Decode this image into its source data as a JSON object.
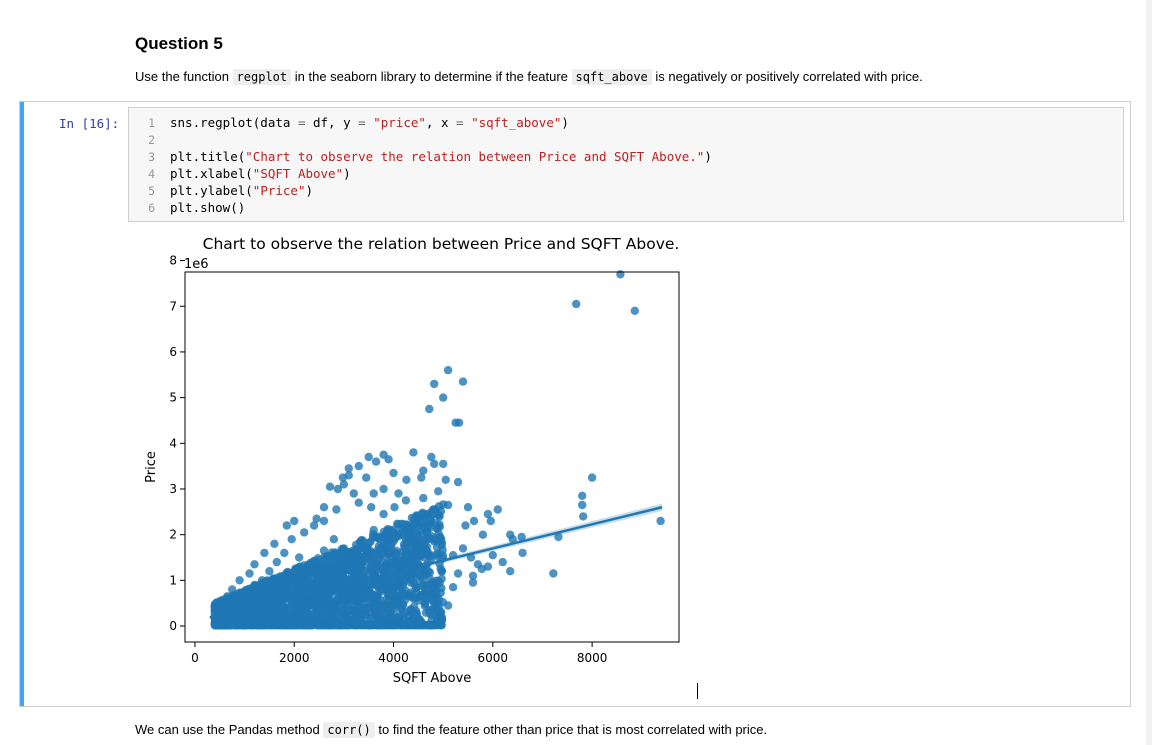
{
  "markdown": {
    "title": "Question 5",
    "para1": {
      "t1": "Use the function ",
      "c1": "regplot",
      "t2": " in the seaborn library to determine if the feature ",
      "c2": "sqft_above",
      "t3": " is negatively or positively correlated with price."
    },
    "para2": {
      "t1": "We can use the Pandas method ",
      "c1": "corr()",
      "t2": " to find the feature other than price that is most correlated with price."
    }
  },
  "cell": {
    "prompt": "In [16]:",
    "lines": [
      {
        "n": "1",
        "parts": [
          "sns.regplot(data ",
          "=",
          " df, y ",
          "=",
          " ",
          "\"price\"",
          ", x ",
          "=",
          " ",
          "\"sqft_above\"",
          ")"
        ]
      },
      {
        "n": "2",
        "parts": []
      },
      {
        "n": "3",
        "parts": [
          "plt.title(",
          "\"Chart to observe the relation between Price and SQFT Above.\"",
          ")"
        ]
      },
      {
        "n": "4",
        "parts": [
          "plt.xlabel(",
          "\"SQFT Above\"",
          ")"
        ]
      },
      {
        "n": "5",
        "parts": [
          "plt.ylabel(",
          "\"Price\"",
          ")"
        ]
      },
      {
        "n": "6",
        "parts": [
          "plt.show()"
        ]
      }
    ]
  },
  "chart_data": {
    "type": "scatter",
    "title": "Chart to observe the relation between Price and SQFT Above.",
    "xlabel": "SQFT Above",
    "ylabel": "Price",
    "y_offset_label": "1e6",
    "xlim": [
      -200,
      9750
    ],
    "ylim": [
      -0.35,
      7.75
    ],
    "xticks": [
      0,
      2000,
      4000,
      6000,
      8000
    ],
    "yticks": [
      0,
      1,
      2,
      3,
      4,
      5,
      6,
      7,
      8
    ],
    "grid": false,
    "color": "#1f77b4",
    "regression_line": {
      "x": [
        300,
        9410
      ],
      "y": [
        0.19,
        2.6
      ]
    },
    "points": [
      [
        4820,
        5.3
      ],
      [
        5100,
        5.6
      ],
      [
        5000,
        5.0
      ],
      [
        5400,
        5.35
      ],
      [
        4720,
        4.75
      ],
      [
        5250,
        4.45
      ],
      [
        5320,
        4.45
      ],
      [
        4400,
        3.8
      ],
      [
        4760,
        3.7
      ],
      [
        4820,
        3.55
      ],
      [
        5000,
        3.55
      ],
      [
        4560,
        3.25
      ],
      [
        5050,
        3.2
      ],
      [
        5500,
        2.6
      ],
      [
        5620,
        2.3
      ],
      [
        5900,
        2.45
      ],
      [
        5960,
        2.3
      ],
      [
        6100,
        2.55
      ],
      [
        6350,
        2.0
      ],
      [
        6400,
        1.9
      ],
      [
        6580,
        1.95
      ],
      [
        6600,
        1.6
      ],
      [
        7320,
        1.95
      ],
      [
        7220,
        1.15
      ],
      [
        8000,
        3.25
      ],
      [
        7800,
        2.85
      ],
      [
        7800,
        2.65
      ],
      [
        7820,
        2.4
      ],
      [
        7680,
        7.05
      ],
      [
        8570,
        7.7
      ],
      [
        8860,
        6.9
      ],
      [
        9380,
        2.3
      ],
      [
        5700,
        1.35
      ],
      [
        5780,
        1.25
      ],
      [
        5560,
        1.5
      ],
      [
        5400,
        1.7
      ],
      [
        5200,
        1.55
      ],
      [
        3500,
        3.7
      ],
      [
        3300,
        3.5
      ],
      [
        3100,
        3.45
      ],
      [
        2980,
        3.25
      ],
      [
        2720,
        3.05
      ],
      [
        2880,
        3.0
      ],
      [
        3000,
        3.1
      ],
      [
        3800,
        3.75
      ],
      [
        3900,
        3.65
      ],
      [
        4000,
        3.35
      ],
      [
        4260,
        3.2
      ],
      [
        4100,
        2.9
      ],
      [
        4600,
        3.4
      ],
      [
        3650,
        3.6
      ],
      [
        3450,
        3.25
      ],
      [
        3600,
        2.9
      ],
      [
        4020,
        2.6
      ],
      [
        4250,
        2.75
      ],
      [
        4480,
        2.3
      ],
      [
        4560,
        2.0
      ],
      [
        4300,
        2.05
      ],
      [
        3800,
        2.45
      ],
      [
        3550,
        2.6
      ],
      [
        3200,
        2.9
      ],
      [
        2850,
        2.55
      ],
      [
        2600,
        2.3
      ],
      [
        2400,
        2.2
      ],
      [
        2200,
        2.05
      ],
      [
        1950,
        1.9
      ],
      [
        1800,
        1.6
      ],
      [
        1650,
        1.4
      ],
      [
        1500,
        1.2
      ],
      [
        1350,
        1.0
      ],
      [
        1200,
        0.9
      ],
      [
        1000,
        0.75
      ],
      [
        900,
        0.55
      ],
      [
        800,
        0.45
      ],
      [
        700,
        0.3
      ],
      [
        600,
        0.2
      ],
      [
        520,
        0.12
      ],
      [
        2100,
        1.5
      ],
      [
        2300,
        1.2
      ],
      [
        2500,
        0.95
      ],
      [
        2700,
        0.8
      ],
      [
        3000,
        0.7
      ],
      [
        3300,
        0.6
      ],
      [
        3600,
        0.55
      ],
      [
        4000,
        0.5
      ],
      [
        4400,
        0.6
      ],
      [
        4800,
        0.75
      ],
      [
        5200,
        0.85
      ],
      [
        5600,
        0.95
      ],
      [
        3800,
        1.25
      ],
      [
        3400,
        1.5
      ],
      [
        3000,
        1.7
      ],
      [
        2600,
        1.65
      ],
      [
        3600,
        2.1
      ],
      [
        4400,
        1.6
      ],
      [
        4700,
        1.2
      ],
      [
        4200,
        0.95
      ],
      [
        1800,
        0.85
      ],
      [
        1500,
        0.6
      ],
      [
        1200,
        0.45
      ],
      [
        2200,
        0.55
      ],
      [
        2600,
        0.4
      ],
      [
        3000,
        0.35
      ],
      [
        1000,
        0.2
      ],
      [
        1700,
        0.3
      ],
      [
        2300,
        0.25
      ],
      [
        3500,
        0.3
      ],
      [
        4200,
        0.25
      ],
      [
        4900,
        0.35
      ],
      [
        5100,
        0.45
      ],
      [
        5300,
        1.15
      ],
      [
        5600,
        1.1
      ],
      [
        5900,
        1.3
      ],
      [
        6000,
        1.55
      ],
      [
        6200,
        1.4
      ],
      [
        6350,
        1.2
      ],
      [
        5800,
        2.0
      ],
      [
        5450,
        2.2
      ],
      [
        5100,
        2.65
      ],
      [
        4800,
        2.55
      ],
      [
        4700,
        2.2
      ],
      [
        3800,
        3.0
      ],
      [
        3300,
        2.7
      ],
      [
        2600,
        2.6
      ],
      [
        2450,
        2.35
      ],
      [
        2000,
        2.3
      ],
      [
        1850,
        2.2
      ],
      [
        1600,
        1.8
      ],
      [
        1400,
        1.6
      ],
      [
        1200,
        1.35
      ],
      [
        1100,
        1.15
      ],
      [
        900,
        1.0
      ],
      [
        750,
        0.8
      ],
      [
        650,
        0.65
      ],
      [
        2800,
        1.9
      ],
      [
        3900,
        1.9
      ],
      [
        4600,
        2.8
      ],
      [
        4900,
        2.95
      ],
      [
        5300,
        3.15
      ],
      [
        3100,
        3.3
      ]
    ]
  }
}
